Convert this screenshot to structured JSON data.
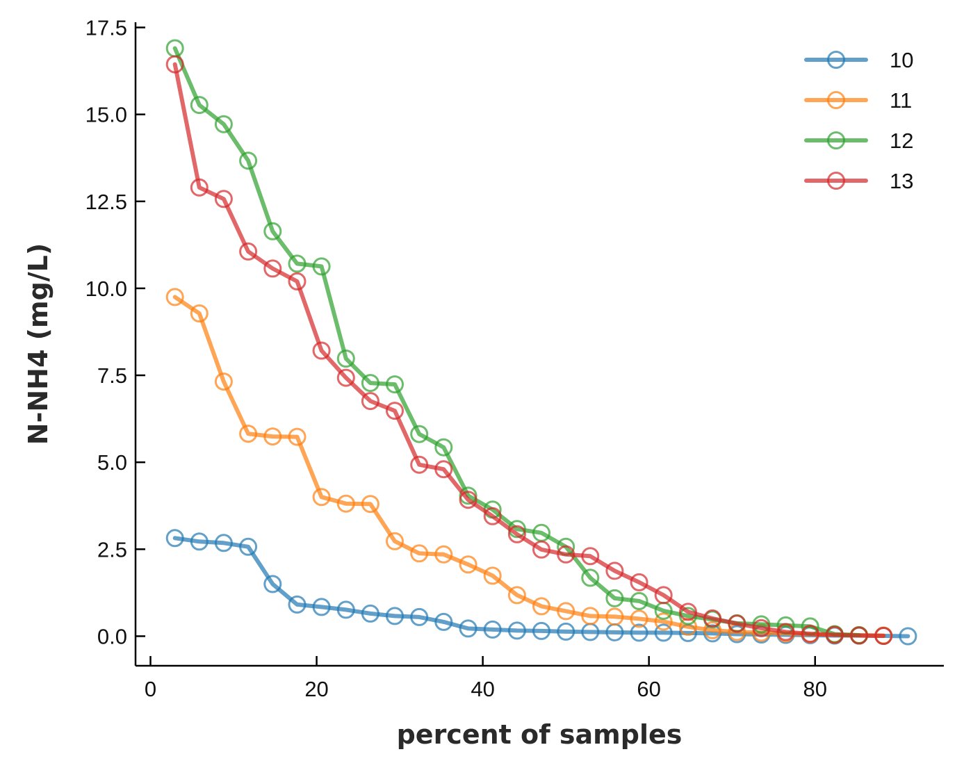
{
  "chart_data": {
    "type": "line",
    "title": "",
    "xlabel": "percent of samples",
    "ylabel": "N-NH4 (mg/L)",
    "xlim": [
      -1.8,
      95.5
    ],
    "ylim": [
      -0.85,
      17.65
    ],
    "xticks": [
      0,
      20,
      40,
      60,
      80
    ],
    "yticks": [
      0.0,
      2.5,
      5.0,
      7.5,
      10.0,
      12.5,
      15.0,
      17.5
    ],
    "xtick_labels": [
      "0",
      "20",
      "40",
      "60",
      "80"
    ],
    "ytick_labels": [
      "0.0",
      "2.5",
      "5.0",
      "7.5",
      "10.0",
      "12.5",
      "15.0",
      "17.5"
    ],
    "grid": false,
    "legend_position": "top-right",
    "marker": "open-circle",
    "series": [
      {
        "name": "10",
        "color": "#1f77b4",
        "x": [
          2.94,
          5.88,
          8.82,
          11.76,
          14.71,
          17.65,
          20.59,
          23.53,
          26.47,
          29.41,
          32.35,
          35.29,
          38.24,
          41.18,
          44.12,
          47.06,
          50.0,
          52.94,
          55.88,
          58.82,
          61.76,
          64.71,
          67.65,
          70.59,
          73.53,
          76.47,
          79.41,
          82.35,
          85.29,
          88.24,
          91.18
        ],
        "y": [
          2.82,
          2.72,
          2.68,
          2.57,
          1.5,
          0.91,
          0.84,
          0.76,
          0.65,
          0.58,
          0.55,
          0.41,
          0.22,
          0.19,
          0.16,
          0.15,
          0.13,
          0.12,
          0.11,
          0.1,
          0.1,
          0.09,
          0.08,
          0.06,
          0.05,
          0.04,
          0.03,
          0.02,
          0.02,
          0.01,
          0.0
        ]
      },
      {
        "name": "11",
        "color": "#ff7f0e",
        "x": [
          2.94,
          5.88,
          8.82,
          11.76,
          14.71,
          17.65,
          20.59,
          23.53,
          26.47,
          29.41,
          32.35,
          35.29,
          38.24,
          41.18,
          44.12,
          47.06,
          50.0,
          52.94,
          55.88,
          58.82,
          61.76,
          64.71,
          67.65,
          70.59,
          73.53,
          76.47,
          79.41,
          82.35,
          85.29,
          88.24
        ],
        "y": [
          9.75,
          9.28,
          7.32,
          5.82,
          5.74,
          5.73,
          4.0,
          3.81,
          3.8,
          2.73,
          2.38,
          2.35,
          2.06,
          1.74,
          1.18,
          0.86,
          0.72,
          0.58,
          0.56,
          0.5,
          0.42,
          0.27,
          0.17,
          0.12,
          0.1,
          0.08,
          0.06,
          0.04,
          0.03,
          0.02
        ]
      },
      {
        "name": "12",
        "color": "#2ca02c",
        "x": [
          2.94,
          5.88,
          8.82,
          11.76,
          14.71,
          17.65,
          20.59,
          23.53,
          26.47,
          29.41,
          32.35,
          35.29,
          38.24,
          41.18,
          44.12,
          47.06,
          50.0,
          52.94,
          55.88,
          58.82,
          61.76,
          64.71,
          67.65,
          70.59,
          73.53,
          76.47,
          79.41,
          82.35,
          85.29
        ],
        "y": [
          16.9,
          15.27,
          14.72,
          13.67,
          11.64,
          10.71,
          10.63,
          7.98,
          7.28,
          7.24,
          5.81,
          5.43,
          4.04,
          3.64,
          3.08,
          2.97,
          2.57,
          1.68,
          1.09,
          1.01,
          0.73,
          0.58,
          0.48,
          0.37,
          0.34,
          0.31,
          0.28,
          0.06,
          0.03
        ]
      },
      {
        "name": "13",
        "color": "#d62728",
        "x": [
          2.94,
          5.88,
          8.82,
          11.76,
          14.71,
          17.65,
          20.59,
          23.53,
          26.47,
          29.41,
          32.35,
          35.29,
          38.24,
          41.18,
          44.12,
          47.06,
          50.0,
          52.94,
          55.88,
          58.82,
          61.76,
          64.71,
          67.65,
          70.59,
          73.53,
          76.47,
          79.41,
          82.35,
          85.29,
          88.24
        ],
        "y": [
          16.44,
          12.9,
          12.57,
          11.06,
          10.57,
          10.2,
          8.21,
          7.43,
          6.76,
          6.48,
          4.93,
          4.8,
          3.92,
          3.45,
          2.93,
          2.49,
          2.35,
          2.3,
          1.88,
          1.55,
          1.18,
          0.7,
          0.51,
          0.36,
          0.23,
          0.12,
          0.07,
          0.04,
          0.02,
          0.01
        ]
      }
    ]
  }
}
